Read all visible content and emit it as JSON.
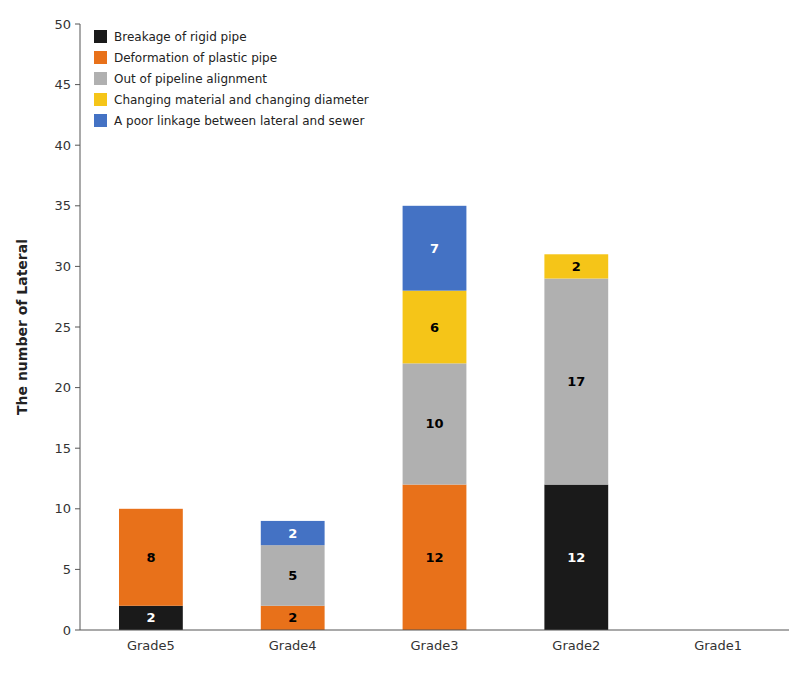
{
  "chart_data": {
    "type": "bar",
    "stacked": true,
    "data_labels": true,
    "legend": "upper left",
    "grid": false,
    "ylabel": "The number of Lateral",
    "categories": [
      "Grade5",
      "Grade4",
      "Grade3",
      "Grade2",
      "Grade1"
    ],
    "series": [
      {
        "name": "Breakage of rigid pipe",
        "color": "#1a1a1a",
        "values": [
          2,
          0,
          0,
          12,
          0
        ]
      },
      {
        "name": "Deformation of plastic pipe",
        "color": "#e8711a",
        "values": [
          8,
          2,
          12,
          0,
          0
        ]
      },
      {
        "name": "Out of pipeline alignment",
        "color": "#b0b0b0",
        "values": [
          0,
          5,
          10,
          17,
          0
        ]
      },
      {
        "name": "Changing material and changing diameter",
        "color": "#f5c518",
        "values": [
          0,
          0,
          6,
          2,
          0
        ]
      },
      {
        "name": "A poor linkage between lateral and sewer",
        "color": "#4472c4",
        "values": [
          0,
          2,
          7,
          0,
          0
        ]
      }
    ],
    "ylim": [
      0,
      50
    ],
    "yticks": [
      0,
      5,
      10,
      15,
      20,
      25,
      30,
      35,
      40,
      45,
      50
    ]
  }
}
